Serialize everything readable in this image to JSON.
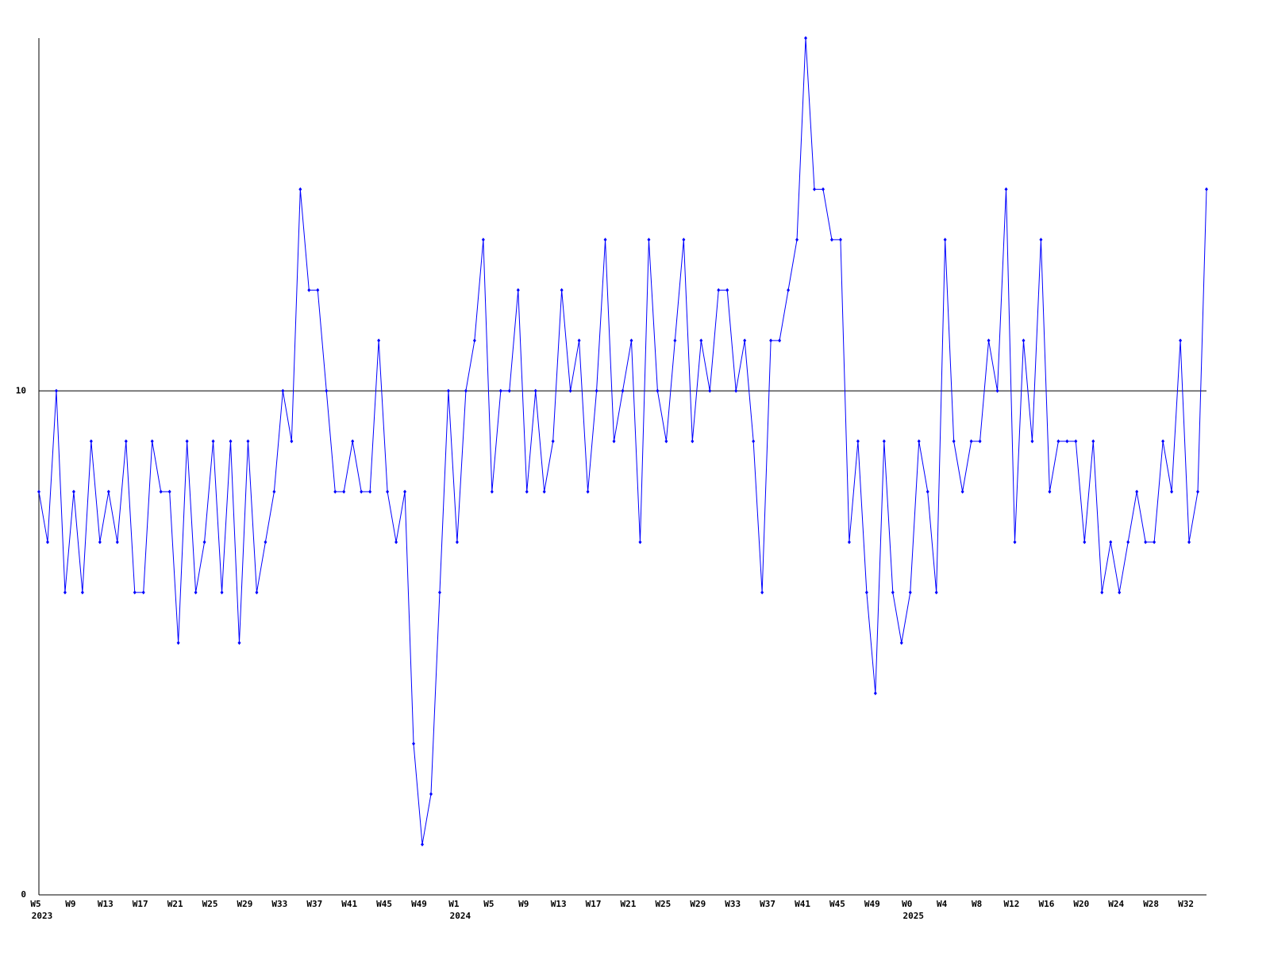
{
  "chart_data": {
    "type": "line",
    "categories": [
      "W5",
      null,
      null,
      null,
      "W9",
      null,
      null,
      null,
      "W13",
      null,
      null,
      null,
      "W17",
      null,
      null,
      null,
      "W21",
      null,
      null,
      null,
      "W25",
      null,
      null,
      null,
      "W29",
      null,
      null,
      null,
      "W33",
      null,
      null,
      null,
      "W37",
      null,
      null,
      null,
      "W41",
      null,
      null,
      null,
      "W45",
      null,
      null,
      null,
      "W49",
      null,
      null,
      null,
      "W1",
      null,
      null,
      null,
      "W5",
      null,
      null,
      null,
      "W9",
      null,
      null,
      null,
      "W13",
      null,
      null,
      null,
      "W17",
      null,
      null,
      null,
      "W21",
      null,
      null,
      null,
      "W25",
      null,
      null,
      null,
      "W29",
      null,
      null,
      null,
      "W33",
      null,
      null,
      null,
      "W37",
      null,
      null,
      null,
      "W41",
      null,
      null,
      null,
      "W45",
      null,
      null,
      null,
      "W49",
      null,
      null,
      null,
      "W0",
      null,
      null,
      null,
      "W4",
      null,
      null,
      null,
      "W8",
      null,
      null,
      null,
      "W12",
      null,
      null,
      null,
      "W16",
      null,
      null,
      null,
      "W20",
      null,
      null,
      null,
      "W24",
      null,
      null,
      null,
      "W28",
      null,
      null,
      null,
      "W32",
      null,
      null
    ],
    "year_labels": [
      "2023",
      null,
      null,
      null,
      null,
      null,
      null,
      null,
      null,
      null,
      null,
      null,
      null,
      null,
      null,
      null,
      null,
      null,
      null,
      null,
      null,
      null,
      null,
      null,
      null,
      null,
      null,
      null,
      null,
      null,
      null,
      null,
      null,
      null,
      null,
      null,
      null,
      null,
      null,
      null,
      null,
      null,
      null,
      null,
      null,
      null,
      null,
      null,
      "2024",
      null,
      null,
      null,
      null,
      null,
      null,
      null,
      null,
      null,
      null,
      null,
      null,
      null,
      null,
      null,
      null,
      null,
      null,
      null,
      null,
      null,
      null,
      null,
      null,
      null,
      null,
      null,
      null,
      null,
      null,
      null,
      null,
      null,
      null,
      null,
      null,
      null,
      null,
      null,
      null,
      null,
      null,
      null,
      null,
      null,
      null,
      null,
      null,
      null,
      null,
      null,
      "2025",
      null,
      null,
      null,
      null,
      null,
      null,
      null,
      null,
      null,
      null,
      null,
      null,
      null,
      null,
      null,
      null,
      null,
      null,
      null,
      null,
      null,
      null,
      null,
      null,
      null,
      null,
      null,
      null,
      null,
      null,
      null,
      null,
      null,
      null
    ],
    "series": [
      {
        "color": "#0000ff",
        "values": [
          8,
          7,
          10,
          6,
          8,
          6,
          9,
          7,
          8,
          7,
          9,
          6,
          6,
          9,
          8,
          8,
          5,
          9,
          6,
          7,
          9,
          6,
          9,
          5,
          9,
          6,
          7,
          8,
          10,
          9,
          14,
          12,
          12,
          10,
          8,
          8,
          9,
          8,
          8,
          11,
          8,
          7,
          8,
          3,
          1,
          2,
          6,
          10,
          7,
          10,
          11,
          13,
          8,
          10,
          10,
          12,
          8,
          10,
          8,
          9,
          12,
          10,
          11,
          8,
          10,
          13,
          9,
          10,
          11,
          7,
          13,
          10,
          9,
          11,
          13,
          9,
          11,
          10,
          12,
          12,
          10,
          11,
          9,
          6,
          11,
          11,
          12,
          13,
          17,
          14,
          14,
          13,
          13,
          7,
          9,
          6,
          4,
          9,
          6,
          5,
          6,
          9,
          8,
          6,
          13,
          9,
          8,
          9,
          9,
          11,
          10,
          14,
          7,
          11,
          9,
          13,
          8,
          9,
          9,
          9,
          7,
          9,
          6,
          7,
          6,
          7,
          8,
          7,
          7,
          9,
          8,
          11,
          7,
          8,
          14
        ]
      }
    ],
    "ylim": [
      0,
      17
    ],
    "yticks": [
      0,
      10
    ],
    "grid": true
  }
}
